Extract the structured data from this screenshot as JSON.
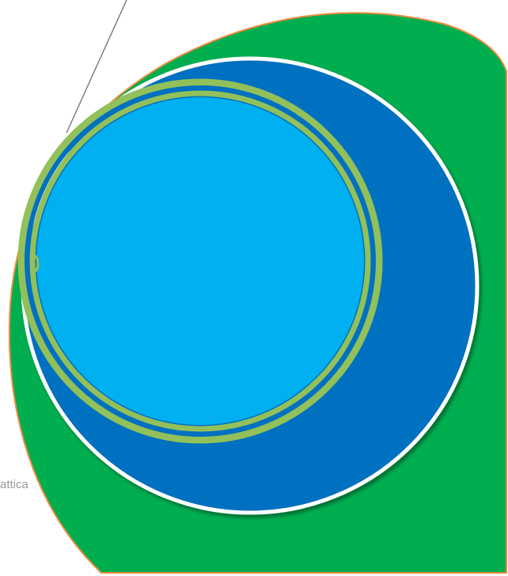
{
  "diagram": {
    "edge_label": "attica",
    "colors": {
      "outer_shape_fill": "#00AD4F",
      "outer_shape_border": "#ED8B3C",
      "large_circle_fill": "#0070C0",
      "large_circle_border": "#FFFFFF",
      "inner_ring": "#92C05A",
      "inner_ring_edge": "#0070C0",
      "inner_circle_fill": "#00B0F0",
      "leader_line": "#7F7F7F"
    }
  }
}
